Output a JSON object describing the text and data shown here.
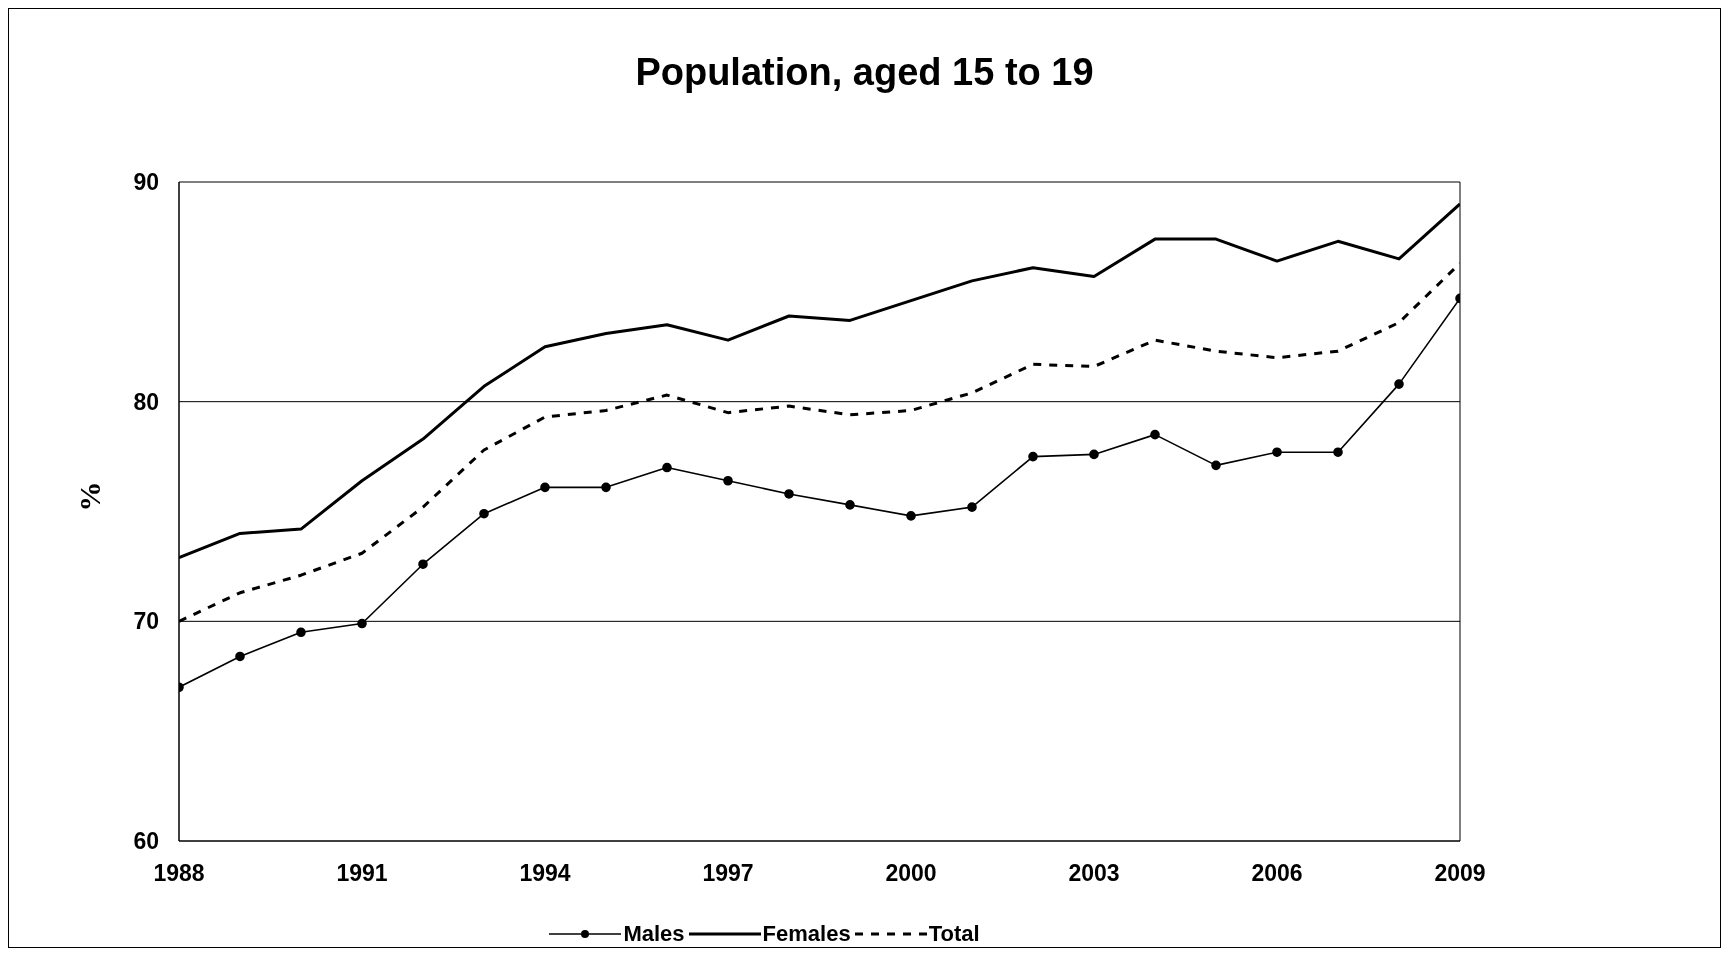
{
  "chart_data": {
    "type": "line",
    "title": "Population, aged 15 to 19",
    "ylabel": "%",
    "x": [
      1988,
      1989,
      1990,
      1991,
      1992,
      1993,
      1994,
      1995,
      1996,
      1997,
      1998,
      1999,
      2000,
      2001,
      2002,
      2003,
      2004,
      2005,
      2006,
      2007,
      2008,
      2009
    ],
    "series": [
      {
        "name": "Males",
        "color": "#000000",
        "marker": "circle",
        "line_style": "solid",
        "values": [
          67.0,
          68.4,
          69.5,
          69.9,
          72.6,
          74.9,
          76.1,
          76.1,
          77.0,
          76.4,
          75.8,
          75.3,
          74.8,
          75.2,
          77.5,
          77.6,
          78.5,
          77.1,
          77.7,
          77.7,
          80.8,
          84.7
        ]
      },
      {
        "name": "Females",
        "color": "#000000",
        "marker": "none",
        "line_style": "solid",
        "values": [
          72.9,
          74.0,
          74.2,
          76.4,
          78.3,
          80.7,
          82.5,
          83.1,
          83.5,
          82.8,
          83.9,
          83.7,
          84.6,
          85.5,
          86.1,
          85.7,
          87.4,
          87.4,
          86.4,
          87.3,
          86.5,
          89.0
        ]
      },
      {
        "name": "Total",
        "color": "#000000",
        "marker": "none",
        "line_style": "dashed",
        "values": [
          70.0,
          71.3,
          72.1,
          73.1,
          75.2,
          77.8,
          79.3,
          79.6,
          80.3,
          79.5,
          79.8,
          79.4,
          79.6,
          80.4,
          81.7,
          81.6,
          82.8,
          82.3,
          82.0,
          82.3,
          83.6,
          86.3
        ]
      }
    ],
    "xlim": [
      1988,
      2009
    ],
    "xticks": [
      1988,
      1991,
      1994,
      1997,
      2000,
      2003,
      2006,
      2009
    ],
    "ylim": [
      60,
      90
    ],
    "yticks": [
      60,
      70,
      80,
      90
    ],
    "grid": "y",
    "legend": "bottom"
  }
}
